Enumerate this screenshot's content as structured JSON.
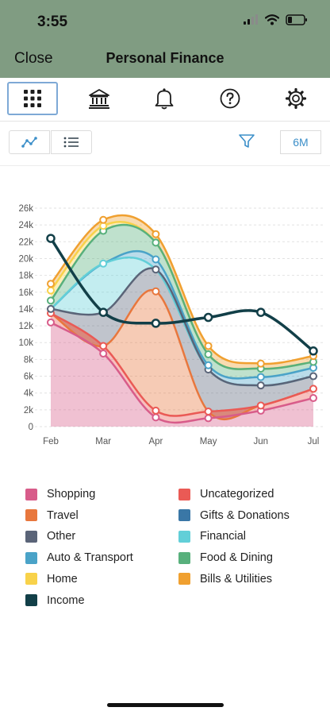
{
  "status": {
    "time": "3:55"
  },
  "nav": {
    "close_label": "Close",
    "title": "Personal Finance"
  },
  "toolbar": {
    "icons": [
      "grid-icon",
      "bank-icon",
      "bell-icon",
      "help-icon",
      "settings-icon"
    ],
    "active": "grid-icon"
  },
  "subbar": {
    "view_modes": [
      "line-chart-icon",
      "list-icon"
    ],
    "filter_icon": "filter-icon",
    "range_label": "6M"
  },
  "colors": {
    "header_bg": "#809c82",
    "accent": "#3c8fc9",
    "Shopping": "#d85c8a",
    "Uncategorized": "#ea5a55",
    "Travel": "#e8773d",
    "Gifts & Donations": "#3a77a6",
    "Other": "#5a6478",
    "Financial": "#62cfd8",
    "Auto & Transport": "#4aa3c8",
    "Food & Dining": "#58b07c",
    "Home": "#f8d24a",
    "Bills & Utilities": "#f0a030",
    "Income": "#123f48"
  },
  "chart_data": {
    "type": "area",
    "stacked": true,
    "smooth": true,
    "x": [
      "Feb",
      "Mar",
      "Apr",
      "May",
      "Jun",
      "Jul"
    ],
    "ylim": [
      0,
      26000
    ],
    "yticks": [
      "0",
      "2k",
      "4k",
      "6k",
      "8k",
      "10k",
      "12k",
      "14k",
      "16k",
      "18k",
      "20k",
      "22k",
      "24k",
      "26k"
    ],
    "grid": true,
    "legend_position": "bottom",
    "series": [
      {
        "name": "Shopping",
        "values": [
          12400,
          8700,
          1100,
          1000,
          1900,
          3400
        ]
      },
      {
        "name": "Uncategorized",
        "values": [
          1100,
          900,
          800,
          800,
          600,
          1100
        ]
      },
      {
        "name": "Travel",
        "values": [
          0,
          0,
          14200,
          0,
          0,
          0
        ]
      },
      {
        "name": "Gifts & Donations",
        "values": [
          0,
          0,
          0,
          0,
          0,
          0
        ]
      },
      {
        "name": "Other",
        "values": [
          500,
          4000,
          2600,
          5000,
          2400,
          1500
        ]
      },
      {
        "name": "Financial",
        "values": [
          0,
          5800,
          0,
          0,
          0,
          0
        ]
      },
      {
        "name": "Auto & Transport",
        "values": [
          0,
          0,
          1200,
          500,
          1000,
          1000
        ]
      },
      {
        "name": "Food & Dining",
        "values": [
          1000,
          3900,
          2000,
          1300,
          1000,
          700
        ]
      },
      {
        "name": "Home",
        "values": [
          1200,
          600,
          0,
          0,
          0,
          0
        ]
      },
      {
        "name": "Bills & Utilities",
        "values": [
          800,
          700,
          1000,
          1000,
          600,
          700
        ]
      }
    ],
    "line_series": [
      {
        "name": "Income",
        "values": [
          22400,
          13600,
          12300,
          13000,
          13600,
          9000
        ]
      }
    ],
    "legend": [
      "Shopping",
      "Uncategorized",
      "Travel",
      "Gifts & Donations",
      "Other",
      "Financial",
      "Auto & Transport",
      "Food & Dining",
      "Home",
      "Bills & Utilities",
      "Income"
    ]
  }
}
